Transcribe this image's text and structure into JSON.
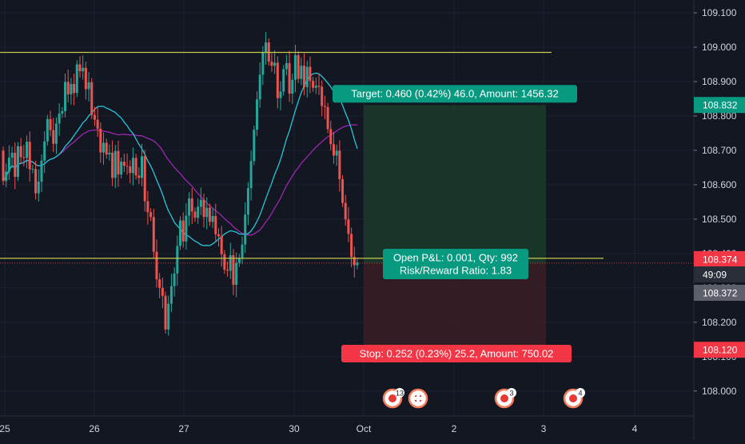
{
  "colors": {
    "background": "#131722",
    "grid": "#1e2230",
    "up": "#26a69a",
    "down": "#ef5350",
    "sma_slow": "#9c27b0",
    "sma_fast": "#26c6da",
    "hline": "#c6c94b",
    "target_zone": "#1b3b29",
    "stop_zone": "#3a1d25",
    "profit_box": "#089981",
    "loss_box": "#f23645",
    "axis_text": "#d1d4dc",
    "price_tag_gray": "#5d606b"
  },
  "chart_data": {
    "type": "candlestick",
    "instrument_ticks": [
      "108.000",
      "108.100",
      "108.200",
      "108.300",
      "108.400",
      "108.500",
      "108.600",
      "108.700",
      "108.800",
      "108.900",
      "109.000",
      "109.100"
    ],
    "ylim": [
      107.925,
      109.135
    ],
    "x_ticks": [
      "25",
      "26",
      "27",
      "30",
      "Oct",
      "2",
      "3",
      "4"
    ],
    "grid": true,
    "price_tags": {
      "target": "108.832",
      "current": "108.374",
      "countdown": "49:09",
      "bid": "108.372",
      "stop": "108.120"
    },
    "horizontal_lines": [
      108.985,
      108.386
    ],
    "position": {
      "entry": 108.372,
      "target": 108.832,
      "stop": 108.12,
      "target_label": "Target: 0.460 (0.42%) 46.0, Amount: 1456.32",
      "stop_label": "Stop: 0.252 (0.23%) 25.2, Amount: 750.02",
      "pnl_label_line1": "Open P&L: 0.001, Qty: 992",
      "pnl_label_line2": "Risk/Reward Ratio: 1.83"
    },
    "event_badges": [
      "13",
      "3",
      "4"
    ],
    "candles": [
      [
        108.699,
        108.611
      ],
      [
        108.611,
        108.638
      ],
      [
        108.638,
        108.679
      ],
      [
        108.679,
        108.693
      ],
      [
        108.693,
        108.623
      ],
      [
        108.623,
        108.712
      ],
      [
        108.712,
        108.68
      ],
      [
        108.68,
        108.678
      ],
      [
        108.678,
        108.725
      ],
      [
        108.725,
        108.645
      ],
      [
        108.645,
        108.646
      ],
      [
        108.646,
        108.575
      ],
      [
        108.575,
        108.609
      ],
      [
        108.609,
        108.67
      ],
      [
        108.67,
        108.726
      ],
      [
        108.726,
        108.791
      ],
      [
        108.791,
        108.759
      ],
      [
        108.759,
        108.719
      ],
      [
        108.719,
        108.778
      ],
      [
        108.778,
        108.807
      ],
      [
        108.807,
        108.814
      ],
      [
        108.814,
        108.899
      ],
      [
        108.899,
        108.863
      ],
      [
        108.863,
        108.893
      ],
      [
        108.893,
        108.867
      ],
      [
        108.867,
        108.95
      ],
      [
        108.95,
        108.93
      ],
      [
        108.93,
        108.94
      ],
      [
        108.94,
        108.878
      ],
      [
        108.878,
        108.898
      ],
      [
        108.898,
        108.803
      ],
      [
        108.803,
        108.789
      ],
      [
        108.789,
        108.763
      ],
      [
        108.763,
        108.694
      ],
      [
        108.694,
        108.722
      ],
      [
        108.722,
        108.688
      ],
      [
        108.688,
        108.693
      ],
      [
        108.693,
        108.62
      ],
      [
        108.62,
        108.698
      ],
      [
        108.698,
        108.63
      ],
      [
        108.63,
        108.667
      ],
      [
        108.667,
        108.655
      ],
      [
        108.655,
        108.653
      ],
      [
        108.653,
        108.634
      ],
      [
        108.634,
        108.678
      ],
      [
        108.678,
        108.627
      ],
      [
        108.627,
        108.62
      ],
      [
        108.62,
        108.683
      ],
      [
        108.683,
        108.552
      ],
      [
        108.552,
        108.52
      ],
      [
        108.52,
        108.506
      ],
      [
        108.506,
        108.405
      ],
      [
        108.405,
        108.325
      ],
      [
        108.325,
        108.3
      ],
      [
        108.3,
        108.277
      ],
      [
        108.277,
        108.179
      ],
      [
        108.179,
        108.254
      ],
      [
        108.254,
        108.305
      ],
      [
        108.305,
        108.342
      ],
      [
        108.342,
        108.422
      ],
      [
        108.422,
        108.496
      ],
      [
        108.496,
        108.435
      ],
      [
        108.435,
        108.51
      ],
      [
        108.51,
        108.56
      ],
      [
        108.56,
        108.522
      ],
      [
        108.522,
        108.504
      ],
      [
        108.504,
        108.536
      ],
      [
        108.536,
        108.556
      ],
      [
        108.556,
        108.506
      ],
      [
        108.506,
        108.533
      ],
      [
        108.533,
        108.492
      ],
      [
        108.492,
        108.509
      ],
      [
        108.509,
        108.456
      ],
      [
        108.456,
        108.45
      ],
      [
        108.45,
        108.398
      ],
      [
        108.398,
        108.353
      ],
      [
        108.353,
        108.35
      ],
      [
        108.35,
        108.395
      ],
      [
        108.395,
        108.309
      ],
      [
        108.309,
        108.373
      ],
      [
        108.373,
        108.387
      ],
      [
        108.387,
        108.426
      ],
      [
        108.426,
        108.513
      ],
      [
        108.513,
        108.59
      ],
      [
        108.59,
        108.669
      ],
      [
        108.669,
        108.76
      ],
      [
        108.76,
        108.848
      ],
      [
        108.848,
        108.92
      ],
      [
        108.92,
        108.985
      ],
      [
        108.985,
        109.014
      ],
      [
        109.014,
        108.958
      ],
      [
        108.958,
        108.946
      ],
      [
        108.946,
        108.955
      ],
      [
        108.955,
        108.852
      ],
      [
        108.852,
        108.871
      ],
      [
        108.871,
        108.936
      ],
      [
        108.936,
        108.954
      ],
      [
        108.954,
        108.865
      ],
      [
        108.865,
        108.905
      ],
      [
        108.905,
        108.977
      ],
      [
        108.977,
        108.908
      ],
      [
        108.908,
        108.946
      ],
      [
        108.946,
        108.884
      ],
      [
        108.884,
        108.943
      ],
      [
        108.943,
        108.902
      ],
      [
        108.902,
        108.882
      ],
      [
        108.882,
        108.888
      ],
      [
        108.888,
        108.885
      ],
      [
        108.885,
        108.829
      ],
      [
        108.829,
        108.826
      ],
      [
        108.826,
        108.762
      ],
      [
        108.762,
        108.718
      ],
      [
        108.718,
        108.685
      ],
      [
        108.685,
        108.699
      ],
      [
        108.699,
        108.616
      ],
      [
        108.616,
        108.547
      ],
      [
        108.547,
        108.499
      ],
      [
        108.499,
        108.457
      ],
      [
        108.457,
        108.39
      ],
      [
        108.39,
        108.366
      ],
      [
        108.366,
        108.374
      ]
    ]
  }
}
